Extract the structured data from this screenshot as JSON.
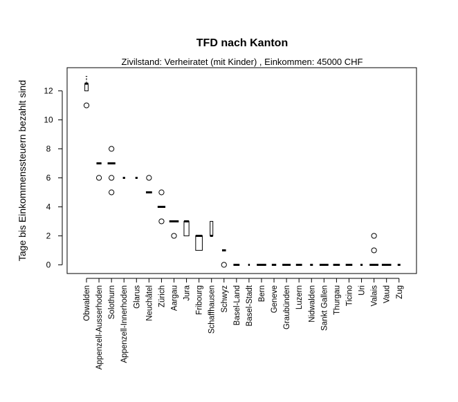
{
  "chart_data": {
    "type": "boxplot",
    "title": "TFD nach Kanton",
    "subtitle": "Zivilstand: Verheiratet (mit Kinder) , Einkommen: 45000 CHF",
    "xlabel": "",
    "ylabel": "Tage bis Einkommenssteuern bezahlt sind",
    "ylim": [
      -0.6,
      13.6
    ],
    "yticks": [
      0,
      2,
      4,
      6,
      8,
      10,
      12
    ],
    "grid": false,
    "categories": [
      "Obwalden",
      "Appenzell-Ausserhoden",
      "Solothurn",
      "Appenzell-Innerhoden",
      "Glarus",
      "Neuchâtel",
      "Zürich",
      "Aargau",
      "Jura",
      "Fribourg",
      "Schaffhausen",
      "Schwyz",
      "Basel-Land",
      "Basel-Stadt",
      "Bern",
      "Geneve",
      "Graubünden",
      "Luzern",
      "Nidwalden",
      "Sankt Gallen",
      "Thurgau",
      "Ticino",
      "Uri",
      "Valais",
      "Vaud",
      "Zug"
    ],
    "boxes": [
      {
        "min": 12,
        "q1": 12,
        "median": 12.5,
        "q3": 12.5,
        "max": 13,
        "outliers": [
          11
        ],
        "width": 0.3
      },
      {
        "min": 7,
        "q1": 7,
        "median": 7,
        "q3": 7,
        "max": 7,
        "outliers": [
          6
        ],
        "width": 0.45
      },
      {
        "min": 7,
        "q1": 7,
        "median": 7,
        "q3": 7,
        "max": 7,
        "outliers": [
          8,
          6,
          5
        ],
        "width": 0.7
      },
      {
        "min": 6,
        "q1": 6,
        "median": 6,
        "q3": 6,
        "max": 6,
        "outliers": [],
        "width": 0.2
      },
      {
        "min": 6,
        "q1": 6,
        "median": 6,
        "q3": 6,
        "max": 6,
        "outliers": [],
        "width": 0.2
      },
      {
        "min": 5,
        "q1": 5,
        "median": 5,
        "q3": 5,
        "max": 5,
        "outliers": [
          6
        ],
        "width": 0.55
      },
      {
        "min": 4,
        "q1": 4,
        "median": 4,
        "q3": 4,
        "max": 4,
        "outliers": [
          5,
          3
        ],
        "width": 0.7
      },
      {
        "min": 3,
        "q1": 3,
        "median": 3,
        "q3": 3,
        "max": 3,
        "outliers": [
          2
        ],
        "width": 0.85
      },
      {
        "min": 2,
        "q1": 2,
        "median": 3,
        "q3": 3,
        "max": 3,
        "outliers": [],
        "width": 0.45
      },
      {
        "min": 1,
        "q1": 1,
        "median": 2,
        "q3": 2,
        "max": 2,
        "outliers": [],
        "width": 0.6
      },
      {
        "min": 2,
        "q1": 2,
        "median": 2,
        "q3": 3,
        "max": 3,
        "outliers": [],
        "width": 0.25
      },
      {
        "min": 1,
        "q1": 1,
        "median": 1,
        "q3": 1,
        "max": 1,
        "outliers": [
          0
        ],
        "width": 0.35
      },
      {
        "min": 0,
        "q1": 0,
        "median": 0,
        "q3": 0,
        "max": 0,
        "outliers": [],
        "width": 0.55
      },
      {
        "min": 0,
        "q1": 0,
        "median": 0,
        "q3": 0,
        "max": 0,
        "outliers": [],
        "width": 0.15
      },
      {
        "min": 0,
        "q1": 0,
        "median": 0,
        "q3": 0,
        "max": 0,
        "outliers": [],
        "width": 0.85
      },
      {
        "min": 0,
        "q1": 0,
        "median": 0,
        "q3": 0,
        "max": 0,
        "outliers": [],
        "width": 0.4
      },
      {
        "min": 0,
        "q1": 0,
        "median": 0,
        "q3": 0,
        "max": 0,
        "outliers": [],
        "width": 0.75
      },
      {
        "min": 0,
        "q1": 0,
        "median": 0,
        "q3": 0,
        "max": 0,
        "outliers": [],
        "width": 0.55
      },
      {
        "min": 0,
        "q1": 0,
        "median": 0,
        "q3": 0,
        "max": 0,
        "outliers": [],
        "width": 0.25
      },
      {
        "min": 0,
        "q1": 0,
        "median": 0,
        "q3": 0,
        "max": 0,
        "outliers": [],
        "width": 0.8
      },
      {
        "min": 0,
        "q1": 0,
        "median": 0,
        "q3": 0,
        "max": 0,
        "outliers": [],
        "width": 0.6
      },
      {
        "min": 0,
        "q1": 0,
        "median": 0,
        "q3": 0,
        "max": 0,
        "outliers": [],
        "width": 0.6
      },
      {
        "min": 0,
        "q1": 0,
        "median": 0,
        "q3": 0,
        "max": 0,
        "outliers": [],
        "width": 0.2
      },
      {
        "min": 0,
        "q1": 0,
        "median": 0,
        "q3": 0,
        "max": 0,
        "outliers": [
          2,
          1
        ],
        "width": 0.8
      },
      {
        "min": 0,
        "q1": 0,
        "median": 0,
        "q3": 0,
        "max": 0,
        "outliers": [],
        "width": 0.85
      },
      {
        "min": 0,
        "q1": 0,
        "median": 0,
        "q3": 0,
        "max": 0,
        "outliers": [],
        "width": 0.25
      }
    ]
  }
}
